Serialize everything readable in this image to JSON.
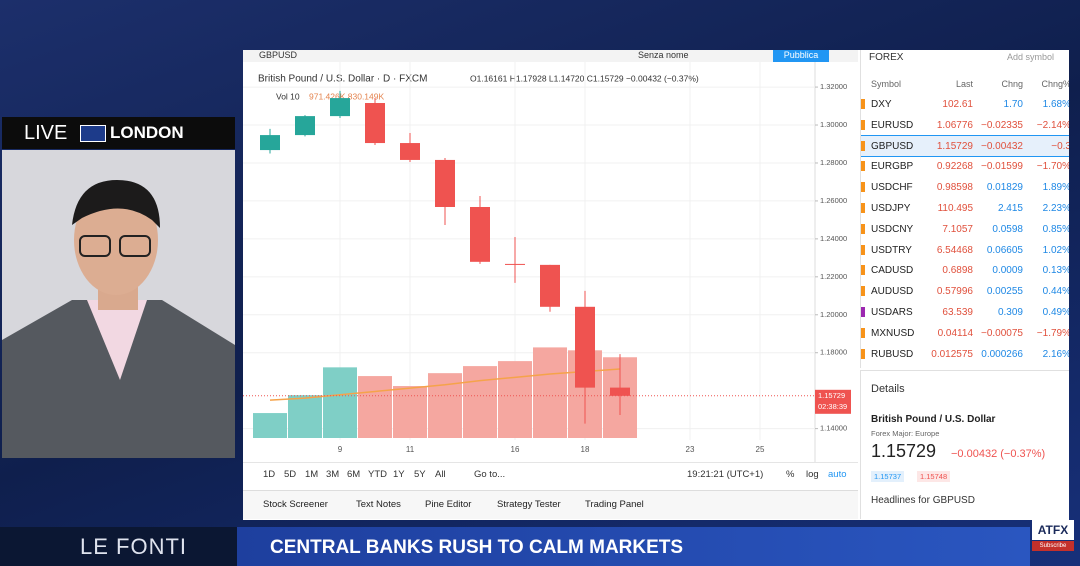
{
  "overlay": {
    "live": "LIVE",
    "city": "LONDON",
    "brand": "LE FONTI",
    "headline": "CENTRAL BANKS RUSH TO CALM MARKETS",
    "broker": "ATFX",
    "subscribe": "Subscribe"
  },
  "toolbar": {
    "symbol": "GBPUSD",
    "layout": "Senza nome",
    "publish": "Pubblica"
  },
  "chart_data": {
    "type": "candlestick",
    "title": "British Pound / U.S. Dollar · D · FXCM",
    "ohlc_label": "O1.16161 H1.17928 L1.14720 C1.15729 −0.00432 (−0.37%)",
    "volume_label": "Vol 10",
    "volume_values_label": "971.426K 830.149K",
    "open": [
      1.2868,
      1.2947,
      1.3047,
      1.3116,
      1.2905,
      1.2816,
      1.2568,
      1.2268,
      1.2263,
      1.2042,
      1.16161
    ],
    "high": [
      1.298,
      1.3052,
      1.318,
      1.3142,
      1.2958,
      1.2826,
      1.2626,
      1.241,
      1.2263,
      1.2126,
      1.17928
    ],
    "low": [
      1.285,
      1.294,
      1.3037,
      1.2895,
      1.2805,
      1.2473,
      1.2268,
      1.2168,
      1.2016,
      1.1426,
      1.1472
    ],
    "close": [
      1.2947,
      1.3047,
      1.3142,
      1.2905,
      1.2816,
      1.2568,
      1.2279,
      1.2263,
      1.2042,
      1.1616,
      1.15729
    ],
    "volume": [
      300000,
      515000,
      850000,
      745000,
      625000,
      780000,
      865000,
      925000,
      1090000,
      1055000,
      971426
    ],
    "volume_ma": [
      455000,
      480000,
      520000,
      560000,
      600000,
      640000,
      690000,
      730000,
      770000,
      800000,
      830149
    ],
    "volume_ylim": [
      0,
      1600000
    ],
    "ylim": [
      1.134,
      1.329
    ],
    "yticks": [
      {
        "value": 1.14,
        "label": "1.14000"
      },
      {
        "value": 1.18,
        "label": "1.18000"
      },
      {
        "value": 1.2,
        "label": "1.20000"
      },
      {
        "value": 1.22,
        "label": "1.22000"
      },
      {
        "value": 1.24,
        "label": "1.24000"
      },
      {
        "value": 1.26,
        "label": "1.26000"
      },
      {
        "value": 1.28,
        "label": "1.28000"
      },
      {
        "value": 1.3,
        "label": "1.30000"
      },
      {
        "value": 1.32,
        "label": "1.32000"
      }
    ],
    "xticks": [
      {
        "value": 2,
        "label": "9"
      },
      {
        "value": 4,
        "label": "11"
      },
      {
        "value": 7,
        "label": "16"
      },
      {
        "value": 9,
        "label": "18"
      },
      {
        "value": 12,
        "label": "23"
      },
      {
        "value": 14,
        "label": "25"
      }
    ],
    "last_price": {
      "value": 1.15729,
      "label": "1.15729"
    },
    "countdown": "02:38:39",
    "up_color": "#26a69a",
    "down_color": "#ef5350",
    "up_volume_color": "#7fcfc6",
    "down_volume_color": "#f5a7a0",
    "ma_color": "#f5a34a"
  },
  "chart_footer": {
    "ranges": [
      "1D",
      "5D",
      "1M",
      "3M",
      "6M",
      "YTD",
      "1Y",
      "5Y",
      "All"
    ],
    "goto": "Go to...",
    "clock": "19:21:21 (UTC+1)",
    "pct": "%",
    "log": "log",
    "auto": "auto"
  },
  "tabs": [
    "Stock Screener",
    "Text Notes",
    "Pine Editor",
    "Strategy Tester",
    "Trading Panel"
  ],
  "watchlist": {
    "title": "FOREX",
    "add": "Add symbol",
    "columns": [
      "Symbol",
      "Last",
      "Chng",
      "Chng%"
    ],
    "rows": [
      [
        "DXY",
        "102.61",
        "1.70",
        "1.68%"
      ],
      [
        "EURUSD",
        "1.06776",
        "−0.02335",
        "−2.14%"
      ],
      [
        "GBPUSD",
        "1.15729",
        "−0.00432",
        "−0.3"
      ],
      [
        "EURGBP",
        "0.92268",
        "−0.01599",
        "−1.70%"
      ],
      [
        "USDCHF",
        "0.98598",
        "0.01829",
        "1.89%"
      ],
      [
        "USDJPY",
        "110.495",
        "2.415",
        "2.23%"
      ],
      [
        "USDCNY",
        "7.1057",
        "0.0598",
        "0.85%"
      ],
      [
        "USDTRY",
        "6.54468",
        "0.06605",
        "1.02%"
      ],
      [
        "CADUSD",
        "0.6898",
        "0.0009",
        "0.13%"
      ],
      [
        "AUDUSD",
        "0.57996",
        "0.00255",
        "0.44%"
      ],
      [
        "USDARS",
        "63.539",
        "0.309",
        "0.49%"
      ],
      [
        "MXNUSD",
        "0.04114",
        "−0.00075",
        "−1.79%"
      ],
      [
        "RUBUSD",
        "0.012575",
        "0.000266",
        "2.16%"
      ]
    ]
  },
  "details": {
    "title": "Details",
    "name": "British Pound / U.S. Dollar",
    "category": "Forex Major: Europe",
    "price": "1.15729",
    "change": "−0.00432 (−0.37%)",
    "bid": "1.15737",
    "ask": "1.15748",
    "headlines": "Headlines for GBPUSD"
  }
}
